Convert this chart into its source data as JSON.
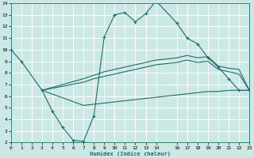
{
  "xlabel": "Humidex (Indice chaleur)",
  "bg_color": "#cce8e5",
  "grid_color": "#ffffff",
  "line_color": "#1e6b6b",
  "xlim": [
    0,
    23
  ],
  "ylim": [
    2,
    14
  ],
  "xticks": [
    0,
    1,
    2,
    3,
    4,
    5,
    6,
    7,
    8,
    9,
    10,
    11,
    12,
    13,
    14,
    16,
    17,
    18,
    19,
    20,
    21,
    22,
    23
  ],
  "yticks": [
    2,
    3,
    4,
    5,
    6,
    7,
    8,
    9,
    10,
    11,
    12,
    13,
    14
  ],
  "line1_x": [
    0,
    1,
    3,
    4,
    5,
    6,
    7,
    8,
    9,
    10,
    11,
    12,
    13,
    14,
    16,
    17,
    18,
    19,
    20,
    21,
    22,
    23
  ],
  "line1_y": [
    10.0,
    9.0,
    6.5,
    4.7,
    3.3,
    2.2,
    2.1,
    4.3,
    11.1,
    13.0,
    13.2,
    12.4,
    13.1,
    14.2,
    12.3,
    11.0,
    10.5,
    9.3,
    8.5,
    7.5,
    6.5,
    6.5
  ],
  "line2_x": [
    3,
    7,
    8,
    9,
    10,
    11,
    12,
    13,
    14,
    16,
    17,
    18,
    19,
    20,
    21,
    22,
    23
  ],
  "line2_y": [
    6.5,
    7.5,
    7.8,
    8.1,
    8.3,
    8.5,
    8.7,
    8.9,
    9.1,
    9.3,
    9.5,
    9.3,
    9.4,
    8.6,
    8.4,
    8.3,
    6.5
  ],
  "line3_x": [
    3,
    7,
    8,
    9,
    10,
    11,
    12,
    13,
    14,
    16,
    17,
    18,
    19,
    20,
    21,
    22,
    23
  ],
  "line3_y": [
    6.5,
    7.2,
    7.5,
    7.7,
    7.9,
    8.1,
    8.3,
    8.5,
    8.7,
    8.9,
    9.1,
    8.9,
    9.0,
    8.3,
    8.1,
    7.9,
    6.5
  ],
  "line4_x": [
    3,
    7,
    8,
    9,
    10,
    11,
    12,
    13,
    14,
    16,
    17,
    18,
    19,
    20,
    21,
    22,
    23
  ],
  "line4_y": [
    6.5,
    5.2,
    5.3,
    5.4,
    5.5,
    5.6,
    5.7,
    5.8,
    5.9,
    6.1,
    6.2,
    6.3,
    6.4,
    6.4,
    6.5,
    6.5,
    6.5
  ]
}
